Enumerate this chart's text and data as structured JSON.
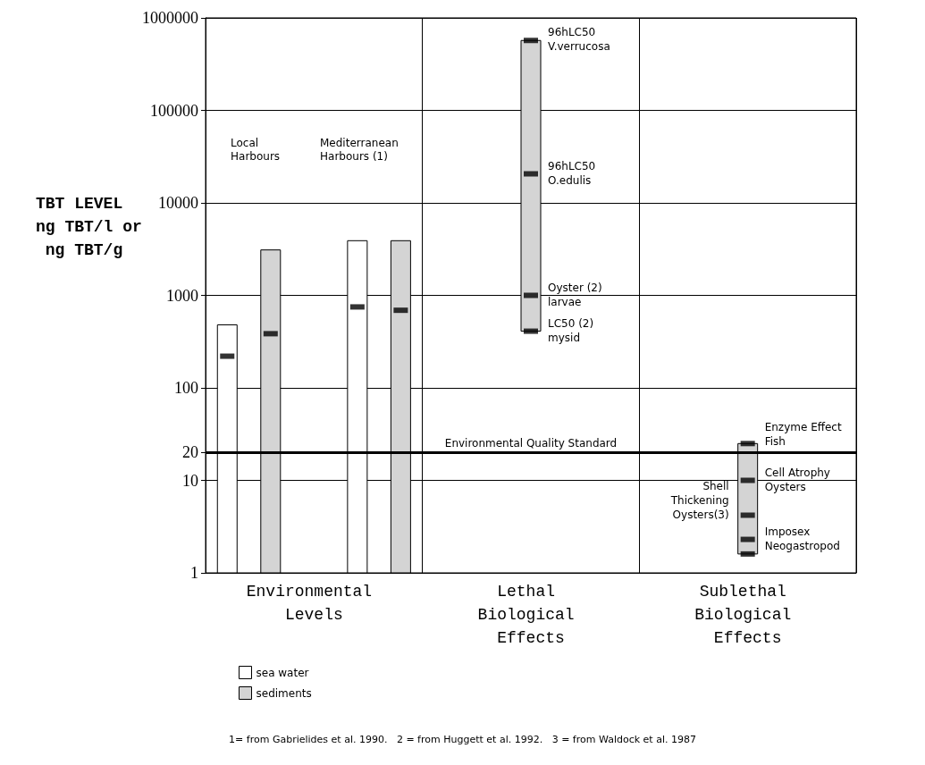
{
  "chart_data": {
    "type": "bar",
    "ylabel": "TBT LEVEL ng TBT/l or ng TBT/g",
    "log": true,
    "ylim": [
      1,
      1000000
    ],
    "yticks": [
      1,
      10,
      20,
      100,
      1000,
      10000,
      100000,
      1000000
    ],
    "categories": [
      null,
      null,
      "Environmental Levels",
      null,
      null,
      null,
      null,
      "Lethal Biological Effects",
      null,
      null,
      null,
      null,
      "Sublethal Biological Effects",
      null,
      null
    ],
    "grid": true,
    "legend": "bottom",
    "series": [
      {
        "name": "sea water",
        "color": "#ffffff",
        "base": [
          1,
          null,
          null,
          1,
          null,
          null,
          null,
          null,
          null,
          null,
          null,
          null,
          null,
          null,
          null
        ],
        "values": [
          479,
          null,
          null,
          3899,
          null,
          null,
          null,
          null,
          null,
          null,
          null,
          null,
          null,
          null,
          null
        ]
      },
      {
        "name": "sediments",
        "color": "#d4d4d4",
        "base": [
          null,
          1,
          null,
          null,
          1,
          null,
          null,
          null,
          null,
          null,
          null,
          null,
          null,
          null,
          null
        ],
        "values": [
          null,
          3099,
          null,
          null,
          3899,
          null,
          null,
          null,
          null,
          null,
          null,
          null,
          null,
          null,
          null
        ]
      },
      {
        "color": "#d4d4d4",
        "base": [
          null,
          null,
          null,
          null,
          null,
          null,
          null,
          410,
          null,
          null,
          null,
          null,
          1.6,
          null,
          null
        ],
        "values": [
          null,
          null,
          null,
          null,
          null,
          null,
          null,
          569590,
          null,
          null,
          null,
          null,
          23.4,
          null,
          null
        ]
      },
      {
        "type": "scatter",
        "color": "#000000",
        "values": [
          220,
          385,
          null,
          750,
          690,
          null,
          null,
          570000,
          null,
          null,
          null,
          null,
          25,
          null,
          null
        ]
      },
      {
        "type": "scatter",
        "color": "#000000",
        "values": [
          null,
          null,
          null,
          null,
          null,
          null,
          null,
          20600,
          null,
          null,
          null,
          null,
          10,
          null,
          null
        ]
      },
      {
        "type": "scatter",
        "color": "#000000",
        "values": [
          null,
          null,
          null,
          null,
          null,
          null,
          null,
          1000,
          null,
          null,
          null,
          null,
          2.3,
          null,
          null
        ]
      },
      {
        "type": "scatter",
        "color": "#000000",
        "values": [
          null,
          null,
          null,
          null,
          null,
          null,
          null,
          410,
          null,
          null,
          null,
          null,
          1.6,
          null,
          null
        ]
      },
      {
        "type": "scatter",
        "color": "#000000",
        "values": [
          null,
          null,
          null,
          null,
          null,
          null,
          null,
          null,
          null,
          null,
          null,
          null,
          4.2,
          null,
          null
        ]
      }
    ],
    "ref_lines": [
      {
        "axis": "y",
        "value": 20,
        "label": "Environmental Quality Standard",
        "color": "#000000"
      }
    ],
    "annotations": [
      "Local\nHarbours",
      "Mediterranean\nHarbours (1)",
      {
        "text": "96hLC50\nV.verrucosa",
        "x": "Lethal Biological Effects",
        "y": 570000
      },
      {
        "text": "96hLC50\nO.edulis",
        "x": "Lethal Biological Effects",
        "y": 20600
      },
      {
        "text": "Oyster (2)\nlarvae",
        "x": "Lethal Biological Effects",
        "y": 1000
      },
      {
        "text": "LC50 (2)\nmysid",
        "x": "Lethal Biological Effects",
        "y": 410
      },
      {
        "text": "Enzyme Effect\nFish",
        "x": "Sublethal Biological Effects",
        "y": 25
      },
      {
        "text": "Cell Atrophy\nOysters",
        "x": "Sublethal Biological Effects",
        "y": 10
      },
      {
        "text": "Imposex\nNeogastropod",
        "x": "Sublethal Biological Effects",
        "y": 2.3
      },
      {
        "text": "Shell\nThickening\nOysters(3)",
        "x": "Sublethal Biological Effects",
        "y": 4.2
      },
      "1= from Gabrielides et al. 1990.   2 = from Huggett et al. 1992.   3 = from Waldock et al. 1987"
    ]
  }
}
